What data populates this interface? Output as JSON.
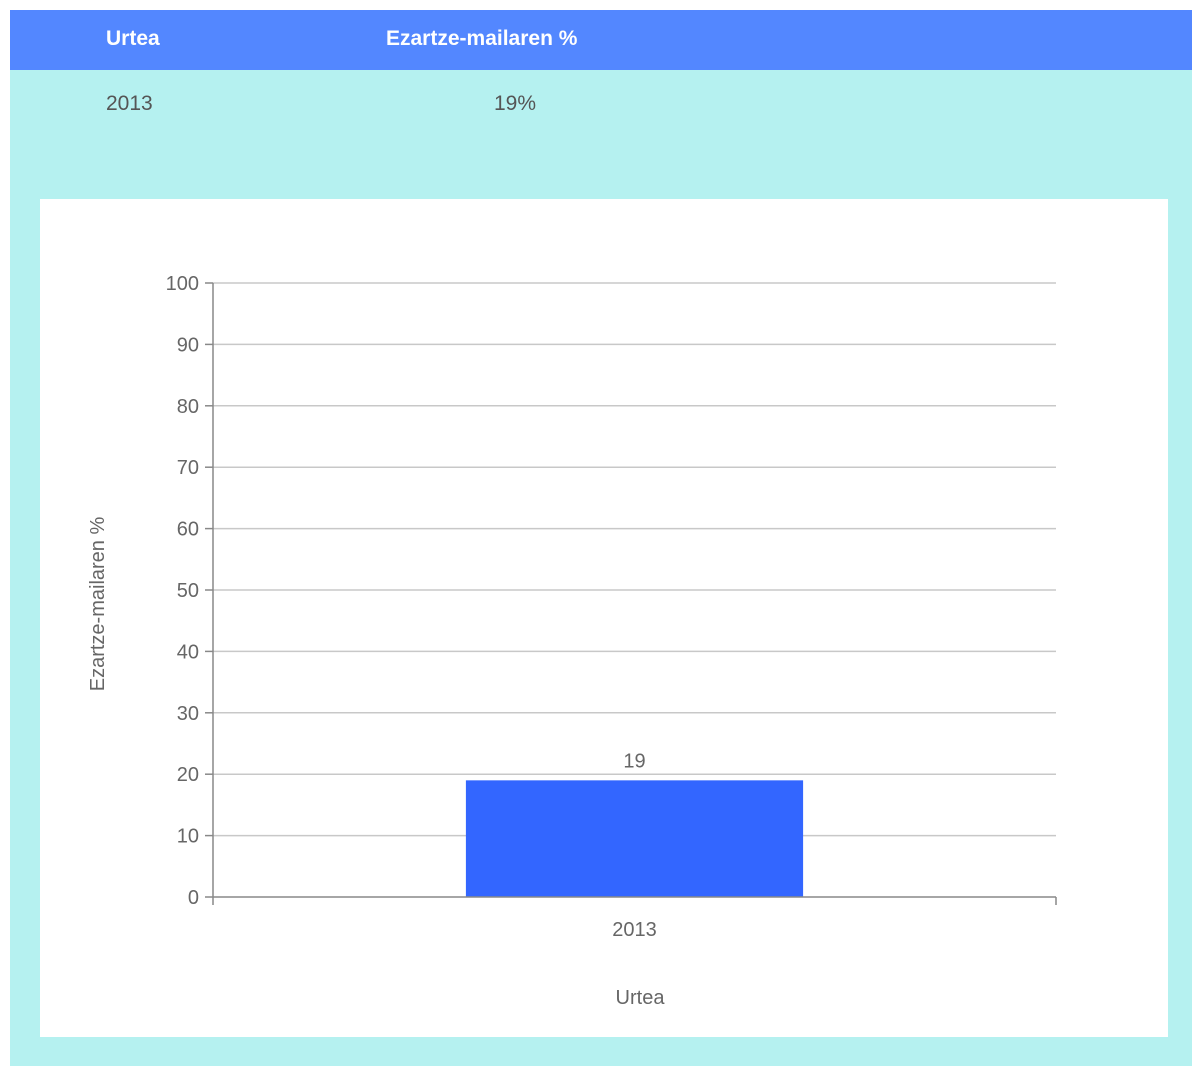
{
  "table": {
    "headers": [
      "Urtea",
      "Ezartze-mailaren %"
    ],
    "rows": [
      [
        "2013",
        "19%"
      ]
    ]
  },
  "colors": {
    "header_bg": "#5387ff",
    "panel_bg": "#b5f1f0",
    "bar": "#3366ff"
  },
  "chart_data": {
    "type": "bar",
    "categories": [
      "2013"
    ],
    "values": [
      19
    ],
    "data_labels": [
      "19"
    ],
    "xlabel": "Urtea",
    "ylabel": "Ezartze-mailaren %",
    "ylim": [
      0,
      100
    ],
    "yticks": [
      0,
      10,
      20,
      30,
      40,
      50,
      60,
      70,
      80,
      90,
      100
    ],
    "grid": true
  }
}
